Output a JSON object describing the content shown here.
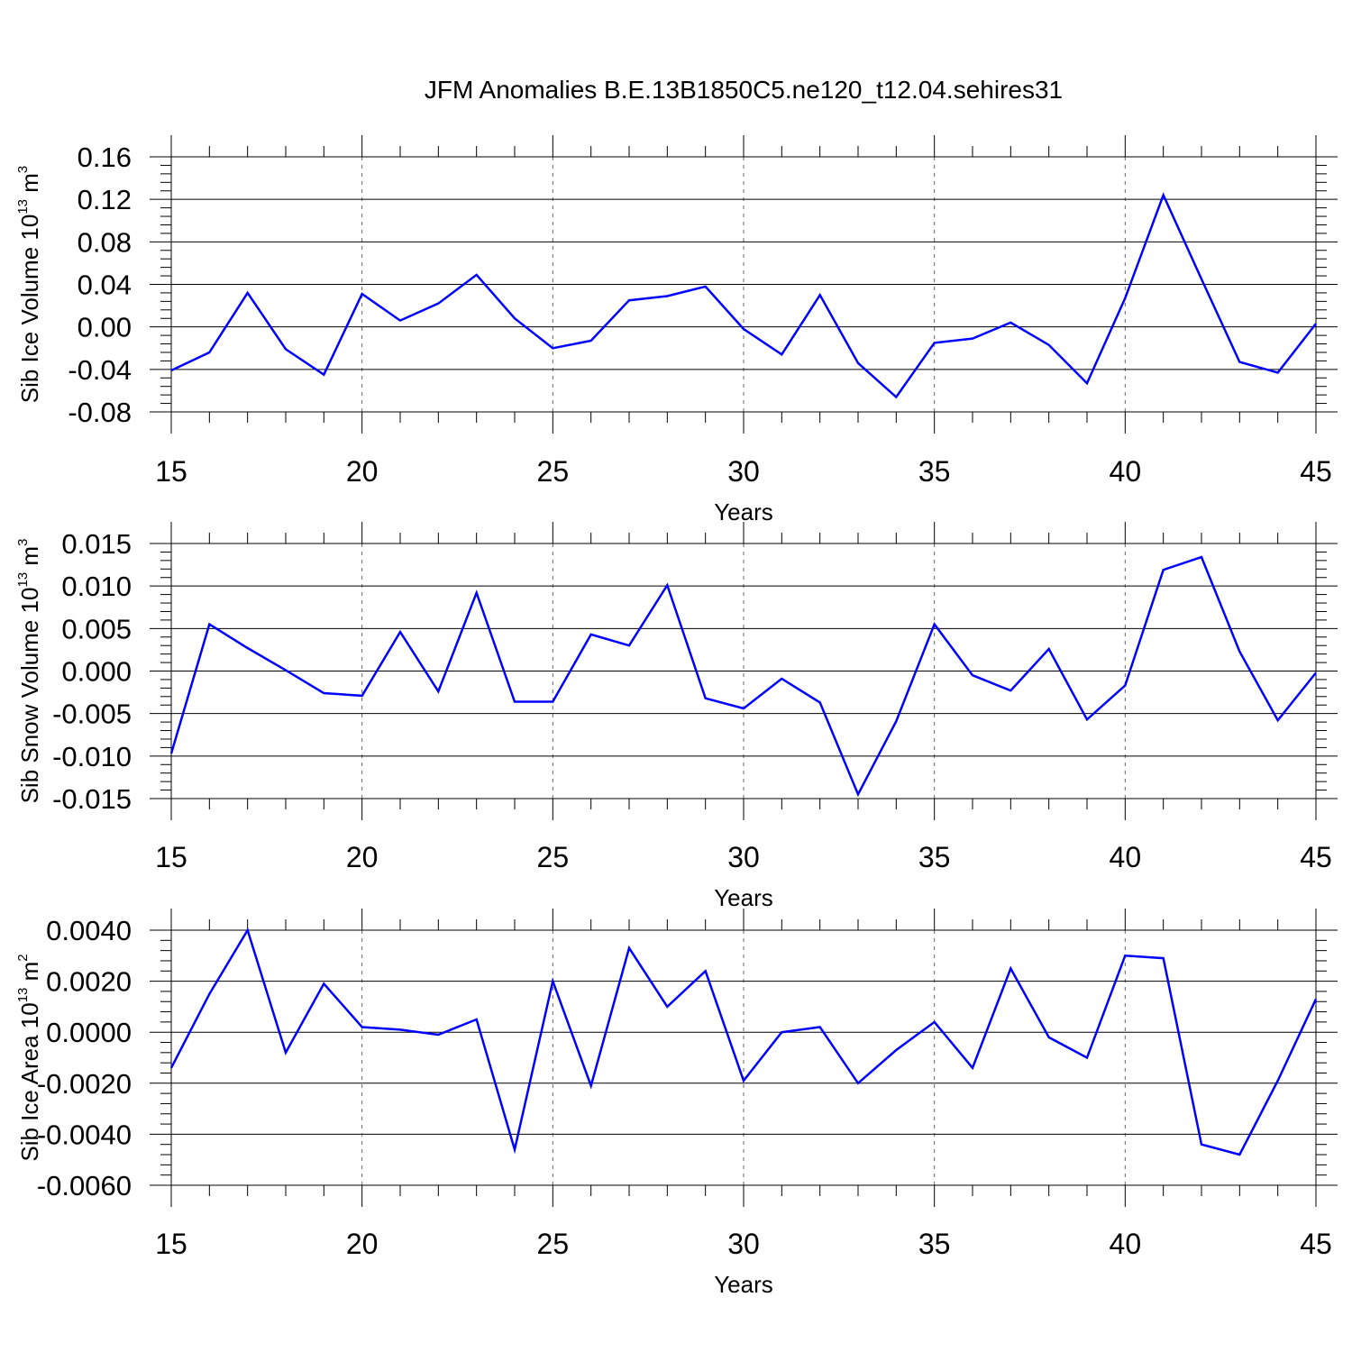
{
  "title": "JFM Anomalies B.E.13B1850C5.ne120_t12.04.sehires31",
  "line_color": "#0000ff",
  "chart_data": [
    {
      "type": "line",
      "xlabel": "Years",
      "ylabel": "Sib Ice Volume 10",
      "ylabel_exp": "13",
      "ylabel_unit": " m",
      "ylabel_unit_exp": "3",
      "xlim": [
        15,
        45
      ],
      "ylim": [
        -0.08,
        0.16
      ],
      "x_ticks": [
        15,
        20,
        25,
        30,
        35,
        40,
        45
      ],
      "x_tick_labels": [
        "15",
        "20",
        "25",
        "30",
        "35",
        "40",
        "45"
      ],
      "y_ticks": [
        -0.08,
        -0.04,
        0.0,
        0.04,
        0.08,
        0.12,
        0.16
      ],
      "y_tick_labels": [
        "-0.08",
        "-0.04",
        "0.00",
        "0.04",
        "0.08",
        "0.12",
        "0.16"
      ],
      "grid": "dashed vertical at major x ticks",
      "x": [
        15,
        16,
        17,
        18,
        19,
        20,
        21,
        22,
        23,
        24,
        25,
        26,
        27,
        28,
        29,
        30,
        31,
        32,
        33,
        34,
        35,
        36,
        37,
        38,
        39,
        40,
        41,
        42,
        43,
        44,
        45
      ],
      "values": [
        -0.041,
        -0.024,
        0.032,
        -0.021,
        -0.045,
        0.031,
        0.006,
        0.022,
        0.049,
        0.008,
        -0.02,
        -0.013,
        0.025,
        0.029,
        0.038,
        -0.002,
        -0.026,
        0.03,
        -0.034,
        -0.066,
        -0.015,
        -0.011,
        0.004,
        -0.017,
        -0.053,
        0.027,
        0.124,
        0.045,
        -0.033,
        -0.043,
        0.003
      ]
    },
    {
      "type": "line",
      "xlabel": "Years",
      "ylabel": "Sib Snow Volume 10",
      "ylabel_exp": "13",
      "ylabel_unit": " m",
      "ylabel_unit_exp": "3",
      "xlim": [
        15,
        45
      ],
      "ylim": [
        -0.015,
        0.015
      ],
      "x_ticks": [
        15,
        20,
        25,
        30,
        35,
        40,
        45
      ],
      "x_tick_labels": [
        "15",
        "20",
        "25",
        "30",
        "35",
        "40",
        "45"
      ],
      "y_ticks": [
        -0.015,
        -0.01,
        -0.005,
        0.0,
        0.005,
        0.01,
        0.015
      ],
      "y_tick_labels": [
        "-0.015",
        "-0.010",
        "-0.005",
        "0.000",
        "0.005",
        "0.010",
        "0.015"
      ],
      "grid": "dashed vertical at major x ticks",
      "x": [
        15,
        16,
        17,
        18,
        19,
        20,
        21,
        22,
        23,
        24,
        25,
        26,
        27,
        28,
        29,
        30,
        31,
        32,
        33,
        34,
        35,
        36,
        37,
        38,
        39,
        40,
        41,
        42,
        43,
        44,
        45
      ],
      "values": [
        -0.0097,
        0.0055,
        0.0027,
        0.0001,
        -0.0026,
        -0.0029,
        0.0046,
        -0.0024,
        0.0092,
        -0.0036,
        -0.0036,
        0.0043,
        0.003,
        0.0101,
        -0.0032,
        -0.0044,
        -0.0009,
        -0.0037,
        -0.0145,
        -0.0059,
        0.0055,
        -0.0005,
        -0.0023,
        0.0026,
        -0.0057,
        -0.0017,
        0.0119,
        0.0134,
        0.0023,
        -0.0058,
        -0.0002
      ]
    },
    {
      "type": "line",
      "xlabel": "Years",
      "ylabel": "Sib Ice Area 10",
      "ylabel_exp": "13",
      "ylabel_unit": " m",
      "ylabel_unit_exp": "2",
      "xlim": [
        15,
        45
      ],
      "ylim": [
        -0.006,
        0.004
      ],
      "x_ticks": [
        15,
        20,
        25,
        30,
        35,
        40,
        45
      ],
      "x_tick_labels": [
        "15",
        "20",
        "25",
        "30",
        "35",
        "40",
        "45"
      ],
      "y_ticks": [
        -0.006,
        -0.004,
        -0.002,
        0.0,
        0.002,
        0.004
      ],
      "y_tick_labels": [
        "-0.0060",
        "-0.0040",
        "-0.0020",
        "0.0000",
        "0.0020",
        "0.0040"
      ],
      "grid": "dashed vertical at major x ticks",
      "x": [
        15,
        16,
        17,
        18,
        19,
        20,
        21,
        22,
        23,
        24,
        25,
        26,
        27,
        28,
        29,
        30,
        31,
        32,
        33,
        34,
        35,
        36,
        37,
        38,
        39,
        40,
        41,
        42,
        43,
        44,
        45
      ],
      "values": [
        -0.0014,
        0.0015,
        0.004,
        -0.0008,
        0.0019,
        0.0002,
        0.0001,
        -0.0001,
        0.0005,
        -0.0046,
        0.002,
        -0.0021,
        0.0033,
        0.001,
        0.0024,
        -0.0019,
        0.0,
        0.0002,
        -0.002,
        -0.0007,
        0.0004,
        -0.0014,
        0.0025,
        -0.0002,
        -0.001,
        0.003,
        0.0029,
        -0.0044,
        -0.0048,
        -0.0019,
        0.0013
      ]
    }
  ]
}
